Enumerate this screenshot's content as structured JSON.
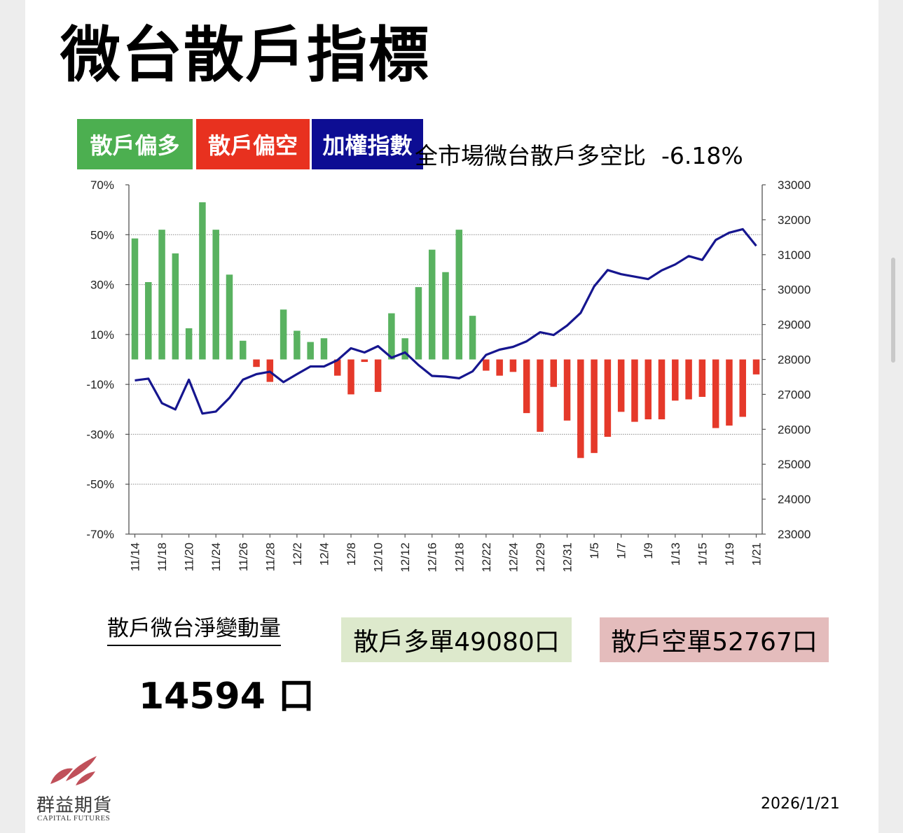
{
  "title": "微台散戶指標",
  "legend": {
    "bull_label": "散戶偏多",
    "bear_label": "散戶偏空",
    "index_label": "加權指數"
  },
  "market_ratio": {
    "label": "全市場微台散戶多空比",
    "value": "-6.18%"
  },
  "colors": {
    "bull": "#59b260",
    "bear": "#e5392a",
    "index": "#16168f",
    "bull_box": "#4caf50",
    "bear_box": "#e8311f",
    "index_box": "#0d0d93",
    "long_bg": "#dde9cc",
    "short_bg": "#e4bcbc"
  },
  "net_change": {
    "label": "散戶微台淨變動量",
    "value": "14594 口"
  },
  "positions": {
    "long": "散戶多單49080口",
    "short": "散戶空單52767口"
  },
  "brand": {
    "name": "群益期貨",
    "sub": "CAPITAL FUTURES"
  },
  "date": "2026/1/21",
  "chart_data": {
    "type": "bar+line",
    "left_axis": {
      "range": [
        -70,
        70
      ],
      "ticks": [
        70,
        50,
        30,
        10,
        -10,
        -30,
        -50,
        -70
      ],
      "tick_labels": [
        "70%",
        "50%",
        "30%",
        "10%",
        "-10%",
        "-30%",
        "-50%",
        "-70%"
      ]
    },
    "right_axis": {
      "range": [
        23000,
        33000
      ],
      "ticks": [
        33000,
        32000,
        31000,
        30000,
        29000,
        28000,
        27000,
        26000,
        25000,
        24000,
        23000
      ],
      "tick_labels": [
        "33000",
        "32000",
        "31000",
        "30000",
        "29000",
        "28000",
        "27000",
        "26000",
        "25000",
        "24000",
        "23000"
      ]
    },
    "x_tick_labels": [
      "11/14",
      "11/18",
      "11/20",
      "11/24",
      "11/26",
      "11/28",
      "12/2",
      "12/4",
      "12/8",
      "12/10",
      "12/12",
      "12/16",
      "12/18",
      "12/22",
      "12/24",
      "12/29",
      "12/31",
      "1/5",
      "1/7",
      "1/9",
      "1/13",
      "1/15",
      "1/19",
      "1/21"
    ],
    "bar_series": {
      "name": "散戶多空比 (%)",
      "values": [
        48.5,
        31,
        52,
        42.5,
        12.5,
        63,
        52,
        34,
        7.5,
        -3,
        -9,
        20,
        11.5,
        7,
        8.5,
        -6.5,
        -14,
        -1,
        -13,
        18.5,
        8.5,
        29,
        44,
        35,
        52,
        17.5,
        -4.5,
        -6.5,
        -5,
        -21.5,
        -29,
        -11,
        -24.5,
        -39.5,
        -37.5,
        -31,
        -21,
        -25,
        -24,
        -24,
        -16.5,
        -16,
        -15,
        -27.5,
        -26.5,
        -23,
        -6
      ]
    },
    "line_series": {
      "name": "加權指數",
      "values": [
        27400,
        27450,
        26750,
        26570,
        27420,
        26450,
        26510,
        26900,
        27420,
        27580,
        27650,
        27350,
        27580,
        27800,
        27800,
        27980,
        28320,
        28200,
        28380,
        28050,
        28200,
        27840,
        27530,
        27510,
        27460,
        27660,
        28130,
        28280,
        28360,
        28520,
        28780,
        28700,
        28970,
        29330,
        30090,
        30560,
        30440,
        30370,
        30300,
        30550,
        30720,
        30960,
        30850,
        31420,
        31630,
        31730,
        31250
      ]
    }
  }
}
